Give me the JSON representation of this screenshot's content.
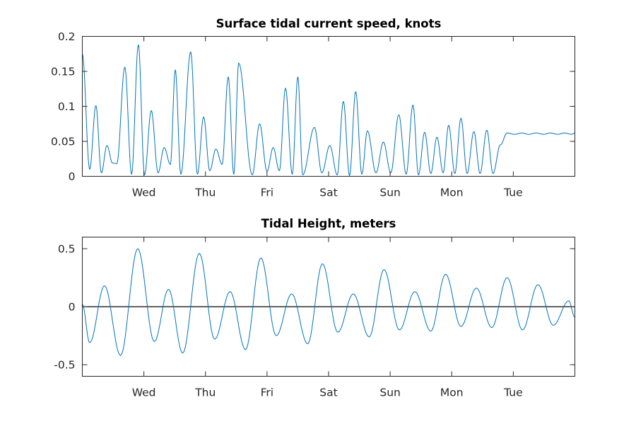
{
  "chart_data": [
    {
      "type": "line",
      "title": "Surface tidal current speed, knots",
      "xlabel": "",
      "ylabel": "",
      "x_unit": "days",
      "xlim": [
        0,
        8
      ],
      "ylim": [
        0,
        0.2
      ],
      "y_ticks": [
        0,
        0.05,
        0.1,
        0.15,
        0.2
      ],
      "y_tick_labels": [
        "0",
        "0.05",
        "0.1",
        "0.15",
        "0.2"
      ],
      "x_ticks": [
        1,
        2,
        3,
        4,
        5,
        6,
        7
      ],
      "x_tick_labels": [
        "Wed",
        "Thu",
        "Fri",
        "Sat",
        "Sun",
        "Mon",
        "Tue"
      ],
      "grid": false,
      "series": [
        {
          "color": "#0072BD",
          "x": [
            0,
            0.12,
            0.22,
            0.31,
            0.4,
            0.49,
            0.56,
            0.69,
            0.8,
            0.91,
            1.01,
            1.12,
            1.23,
            1.33,
            1.43,
            1.51,
            1.6,
            1.76,
            1.87,
            1.97,
            2.07,
            2.17,
            2.27,
            2.37,
            2.46,
            2.54,
            2.76,
            2.88,
            3.0,
            3.1,
            3.2,
            3.3,
            3.41,
            3.5,
            3.58,
            3.77,
            3.89,
            4.02,
            4.14,
            4.24,
            4.34,
            4.44,
            4.54,
            4.63,
            4.77,
            4.89,
            5.01,
            5.14,
            5.26,
            5.37,
            5.46,
            5.56,
            5.66,
            5.76,
            5.86,
            5.95,
            6.05,
            6.15,
            6.25,
            6.36,
            6.46,
            6.57,
            6.67,
            6.79,
            6.9,
            7.02,
            7.14,
            7.25,
            7.37,
            7.49,
            7.6,
            7.72,
            7.83,
            7.95,
            8.0
          ],
          "y": [
            0.175,
            0.01,
            0.101,
            0.005,
            0.044,
            0.019,
            0.018,
            0.156,
            0.003,
            0.188,
            0.002,
            0.094,
            0.005,
            0.041,
            0.017,
            0.152,
            0.003,
            0.178,
            0.003,
            0.085,
            0.008,
            0.039,
            0.017,
            0.142,
            0.003,
            0.162,
            0.002,
            0.075,
            0.007,
            0.041,
            0.008,
            0.126,
            0.003,
            0.142,
            0.002,
            0.07,
            0.005,
            0.044,
            0.002,
            0.107,
            0.001,
            0.121,
            0.003,
            0.065,
            0.005,
            0.049,
            0.005,
            0.088,
            0.003,
            0.102,
            0.002,
            0.063,
            0.004,
            0.056,
            0.005,
            0.073,
            0.004,
            0.083,
            0.004,
            0.064,
            0.004,
            0.066,
            0.004,
            0.045,
            0.062,
            0.06,
            0.062,
            0.06,
            0.062,
            0.06,
            0.062,
            0.06,
            0.062,
            0.06,
            0.062
          ]
        }
      ]
    },
    {
      "type": "line",
      "title": "Tidal Height, meters",
      "xlabel": "",
      "ylabel": "",
      "x_unit": "days",
      "xlim": [
        0,
        8
      ],
      "ylim": [
        -0.6,
        0.6
      ],
      "y_ticks": [
        -0.5,
        0,
        0.5
      ],
      "y_tick_labels": [
        "-0.5",
        "0",
        "0.5"
      ],
      "x_ticks": [
        1,
        2,
        3,
        4,
        5,
        6,
        7
      ],
      "x_tick_labels": [
        "Wed",
        "Thu",
        "Fri",
        "Sat",
        "Sun",
        "Mon",
        "Tue"
      ],
      "zero_line": true,
      "grid": false,
      "series": [
        {
          "color": "#0072BD",
          "x": [
            0,
            0.12,
            0.36,
            0.62,
            0.9,
            1.17,
            1.4,
            1.63,
            1.9,
            2.15,
            2.4,
            2.65,
            2.9,
            3.15,
            3.4,
            3.66,
            3.9,
            4.15,
            4.4,
            4.66,
            4.9,
            5.15,
            5.4,
            5.66,
            5.9,
            6.15,
            6.4,
            6.65,
            6.9,
            7.15,
            7.4,
            7.65,
            7.9,
            8.0
          ],
          "y": [
            0.02,
            -0.31,
            0.18,
            -0.42,
            0.5,
            -0.3,
            0.15,
            -0.4,
            0.46,
            -0.28,
            0.13,
            -0.37,
            0.42,
            -0.25,
            0.11,
            -0.32,
            0.37,
            -0.22,
            0.11,
            -0.26,
            0.32,
            -0.2,
            0.13,
            -0.21,
            0.28,
            -0.17,
            0.16,
            -0.18,
            0.25,
            -0.2,
            0.19,
            -0.16,
            0.05,
            -0.09
          ]
        }
      ]
    }
  ]
}
